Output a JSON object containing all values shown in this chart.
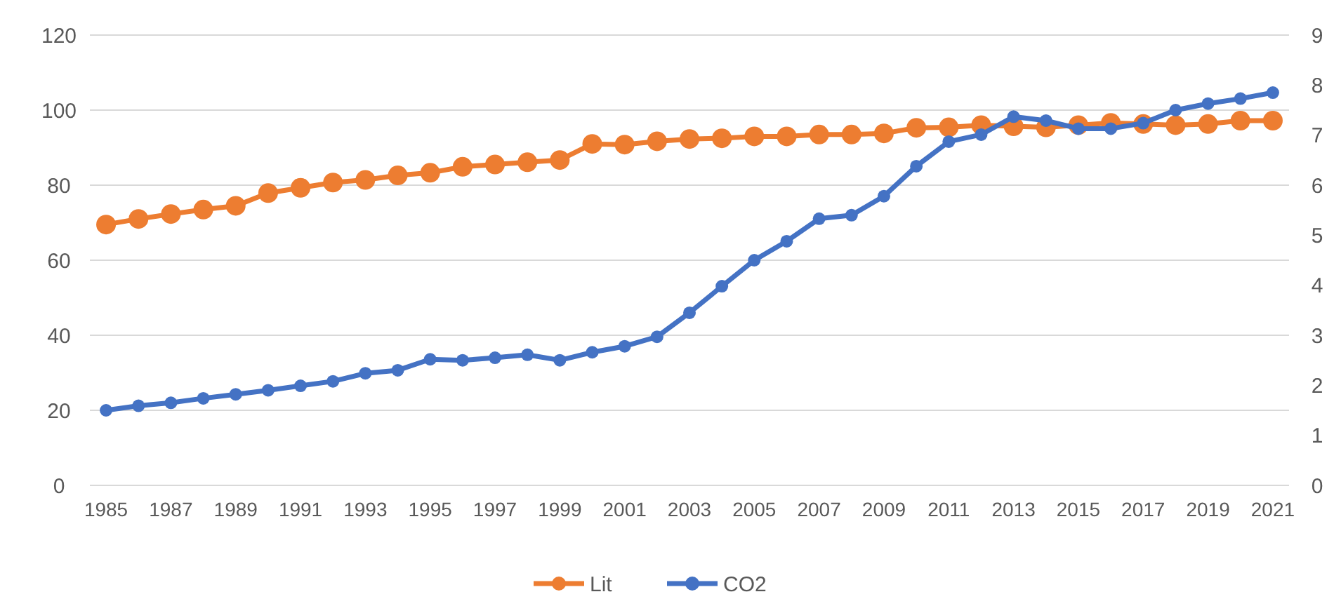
{
  "chart_data": {
    "type": "line",
    "x": [
      1985,
      1986,
      1987,
      1988,
      1989,
      1990,
      1991,
      1992,
      1993,
      1994,
      1995,
      1996,
      1997,
      1998,
      1999,
      2000,
      2001,
      2002,
      2003,
      2004,
      2005,
      2006,
      2007,
      2008,
      2009,
      2010,
      2011,
      2012,
      2013,
      2014,
      2015,
      2016,
      2017,
      2018,
      2019,
      2020,
      2021
    ],
    "series": [
      {
        "name": "Lit",
        "color": "#ed7d31",
        "values": [
          69.5,
          71,
          72.3,
          73.5,
          74.5,
          77.9,
          79.3,
          80.7,
          81.4,
          82.6,
          83.3,
          84.9,
          85.5,
          86.1,
          86.7,
          91,
          90.8,
          91.7,
          92.3,
          92.5,
          93,
          93,
          93.5,
          93.5,
          93.8,
          95.3,
          95.4,
          96,
          95.7,
          95.4,
          96,
          96.6,
          96.3,
          96,
          96.3,
          97.2,
          97.2
        ]
      },
      {
        "name": "CO2",
        "color": "#4472c4",
        "axis": "y2",
        "values": [
          1.5,
          1.59,
          1.65,
          1.74,
          1.82,
          1.9,
          1.99,
          2.08,
          2.24,
          2.3,
          2.52,
          2.5,
          2.55,
          2.61,
          2.5,
          2.66,
          2.78,
          2.97,
          3.45,
          3.98,
          4.5,
          4.88,
          5.33,
          5.4,
          5.78,
          6.38,
          6.87,
          7.01,
          7.37,
          7.29,
          7.13,
          7.13,
          7.24,
          7.5,
          7.63,
          7.73,
          7.85
        ]
      }
    ],
    "xlim": [
      1984.5,
      2021.5
    ],
    "xticks": [
      1985,
      1987,
      1989,
      1991,
      1993,
      1995,
      1997,
      1999,
      2001,
      2003,
      2005,
      2007,
      2009,
      2011,
      2013,
      2015,
      2017,
      2019,
      2021
    ],
    "ylim": [
      0,
      120
    ],
    "yticks": [
      0,
      20,
      40,
      60,
      80,
      100,
      120
    ],
    "y2lim": [
      0,
      9
    ],
    "y2ticks": [
      0,
      1,
      2,
      3,
      4,
      5,
      6,
      7,
      8,
      9
    ],
    "grid": "y",
    "legend": "bottom",
    "marker": "circle",
    "line_style": "solid"
  }
}
